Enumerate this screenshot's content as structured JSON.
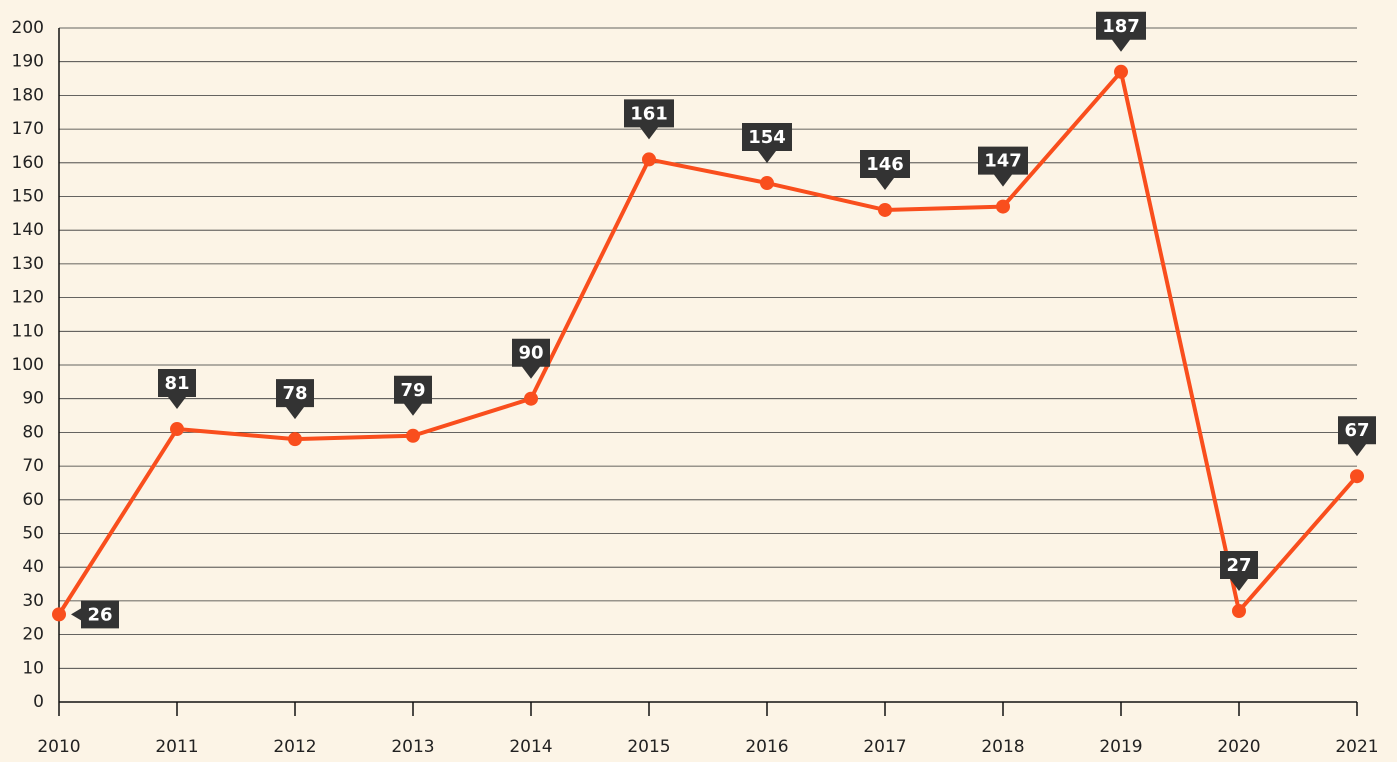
{
  "chart_data": {
    "type": "line",
    "x": [
      2010,
      2011,
      2012,
      2013,
      2014,
      2015,
      2016,
      2017,
      2018,
      2019,
      2020,
      2021
    ],
    "series": [
      {
        "color": "#f94e1d",
        "values": [
          26,
          81,
          78,
          79,
          90,
          161,
          154,
          146,
          147,
          187,
          27,
          67
        ]
      }
    ],
    "xlim": [
      2010,
      2021
    ],
    "xticks": [
      2010,
      2011,
      2012,
      2013,
      2014,
      2015,
      2016,
      2017,
      2018,
      2019,
      2020,
      2021
    ],
    "ylim": [
      0,
      200
    ],
    "yticks": [
      0,
      10,
      20,
      30,
      40,
      50,
      60,
      70,
      80,
      90,
      100,
      110,
      120,
      130,
      140,
      150,
      160,
      170,
      180,
      190,
      200
    ],
    "grid": true
  }
}
